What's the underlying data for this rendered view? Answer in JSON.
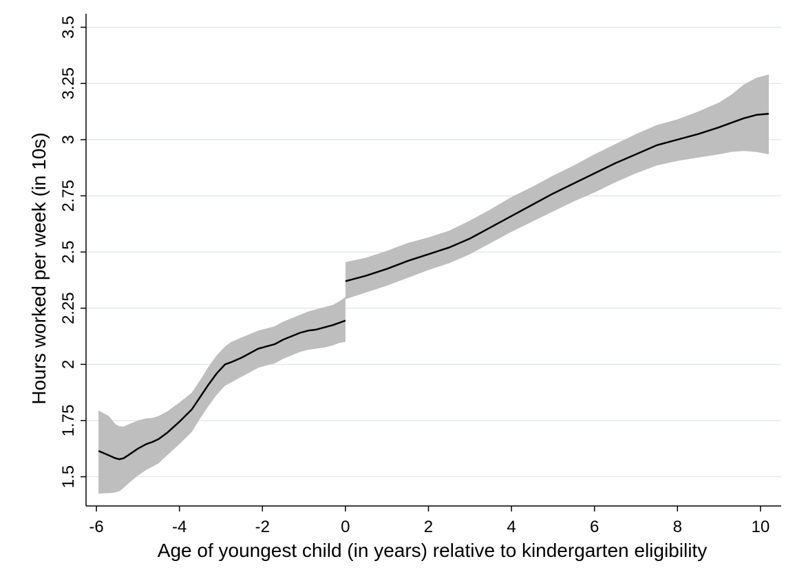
{
  "chart_data": {
    "type": "line",
    "xlabel": "Age of youngest child (in years) relative to kindergarten eligibility",
    "ylabel": "Hours worked per week (in 10s)",
    "xlim": [
      -6.25,
      10.5
    ],
    "ylim": [
      1.37,
      3.56
    ],
    "x_ticks": [
      -6,
      -4,
      -2,
      0,
      2,
      4,
      6,
      8,
      10
    ],
    "y_ticks": [
      1.5,
      1.75,
      2,
      2.25,
      2.5,
      2.75,
      3,
      3.25,
      3.5
    ],
    "y_tick_labels": [
      "1.5",
      "1.75",
      "2",
      "2.25",
      "2.5",
      "2.75",
      "3",
      "3.25",
      "3.5"
    ],
    "grid": true,
    "colors": {
      "line": "#000000",
      "band": "#bebebe",
      "grid": "#e0eaea"
    },
    "segments": [
      {
        "x": [
          -5.95,
          -5.7,
          -5.55,
          -5.45,
          -5.35,
          -5.2,
          -5.0,
          -4.8,
          -4.65,
          -4.5,
          -4.3,
          -4.0,
          -3.7,
          -3.5,
          -3.3,
          -3.1,
          -2.9,
          -2.75,
          -2.5,
          -2.3,
          -2.1,
          -1.9,
          -1.7,
          -1.5,
          -1.3,
          -1.1,
          -0.9,
          -0.7,
          -0.5,
          -0.3,
          -0.15,
          0.0
        ],
        "y": [
          1.615,
          1.595,
          1.583,
          1.578,
          1.582,
          1.6,
          1.625,
          1.645,
          1.655,
          1.668,
          1.695,
          1.745,
          1.8,
          1.855,
          1.91,
          1.96,
          2.0,
          2.01,
          2.03,
          2.05,
          2.07,
          2.08,
          2.09,
          2.11,
          2.125,
          2.14,
          2.15,
          2.155,
          2.165,
          2.175,
          2.185,
          2.195
        ],
        "upper": [
          1.795,
          1.77,
          1.735,
          1.725,
          1.723,
          1.735,
          1.75,
          1.76,
          1.762,
          1.77,
          1.79,
          1.83,
          1.875,
          1.93,
          1.99,
          2.04,
          2.08,
          2.1,
          2.12,
          2.135,
          2.15,
          2.16,
          2.17,
          2.19,
          2.205,
          2.22,
          2.235,
          2.245,
          2.255,
          2.265,
          2.28,
          2.3
        ],
        "lower": [
          1.425,
          1.427,
          1.43,
          1.435,
          1.45,
          1.475,
          1.505,
          1.53,
          1.545,
          1.56,
          1.595,
          1.645,
          1.7,
          1.76,
          1.815,
          1.865,
          1.905,
          1.92,
          1.945,
          1.965,
          1.985,
          1.995,
          2.005,
          2.025,
          2.04,
          2.055,
          2.065,
          2.07,
          2.075,
          2.085,
          2.095,
          2.1
        ]
      },
      {
        "x": [
          0.0,
          0.5,
          1.0,
          1.5,
          2.0,
          2.5,
          3.0,
          3.5,
          4.0,
          4.5,
          5.0,
          5.5,
          6.0,
          6.5,
          7.0,
          7.5,
          8.0,
          8.5,
          9.0,
          9.3,
          9.6,
          9.9,
          10.2
        ],
        "y": [
          2.37,
          2.395,
          2.425,
          2.46,
          2.49,
          2.52,
          2.56,
          2.61,
          2.66,
          2.71,
          2.76,
          2.805,
          2.85,
          2.895,
          2.935,
          2.975,
          3.0,
          3.025,
          3.055,
          3.075,
          3.095,
          3.11,
          3.115
        ],
        "upper": [
          2.455,
          2.475,
          2.505,
          2.54,
          2.565,
          2.595,
          2.64,
          2.69,
          2.745,
          2.79,
          2.84,
          2.885,
          2.935,
          2.98,
          3.025,
          3.065,
          3.09,
          3.125,
          3.165,
          3.2,
          3.245,
          3.275,
          3.29
        ],
        "lower": [
          2.29,
          2.32,
          2.35,
          2.385,
          2.42,
          2.45,
          2.49,
          2.54,
          2.59,
          2.635,
          2.68,
          2.725,
          2.765,
          2.81,
          2.85,
          2.885,
          2.905,
          2.92,
          2.935,
          2.945,
          2.95,
          2.945,
          2.935
        ]
      }
    ]
  }
}
